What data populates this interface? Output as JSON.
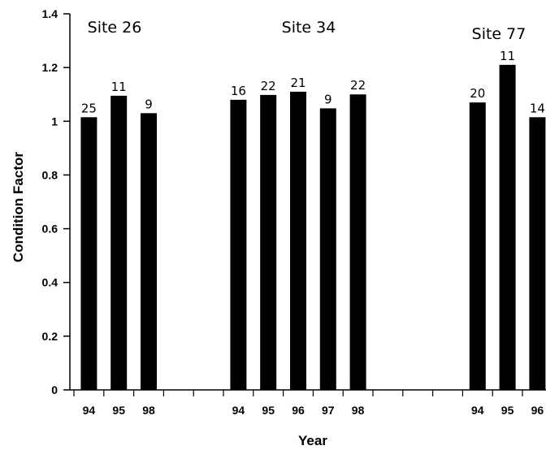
{
  "chart_data": {
    "type": "bar",
    "title": "",
    "xlabel": "Year",
    "ylabel": "Condition Factor",
    "ylim": [
      0,
      1.4
    ],
    "yticks": [
      "0",
      "0.2",
      "0.4",
      "0.6",
      "0.8",
      "1",
      "1.2",
      "1.4"
    ],
    "groups": [
      {
        "site": "Site 26",
        "bars": [
          {
            "year": "94",
            "value": 1.015,
            "n": "25"
          },
          {
            "year": "95",
            "value": 1.095,
            "n": "11"
          },
          {
            "year": "98",
            "value": 1.03,
            "n": "9"
          }
        ]
      },
      {
        "site": "Site 34",
        "bars": [
          {
            "year": "94",
            "value": 1.08,
            "n": "16"
          },
          {
            "year": "95",
            "value": 1.098,
            "n": "22"
          },
          {
            "year": "96",
            "value": 1.11,
            "n": "21"
          },
          {
            "year": "97",
            "value": 1.048,
            "n": "9"
          },
          {
            "year": "98",
            "value": 1.1,
            "n": "22"
          }
        ]
      },
      {
        "site": "Site 77",
        "bars": [
          {
            "year": "94",
            "value": 1.07,
            "n": "20"
          },
          {
            "year": "95",
            "value": 1.21,
            "n": "11"
          },
          {
            "year": "96",
            "value": 1.015,
            "n": "14"
          }
        ]
      }
    ]
  }
}
